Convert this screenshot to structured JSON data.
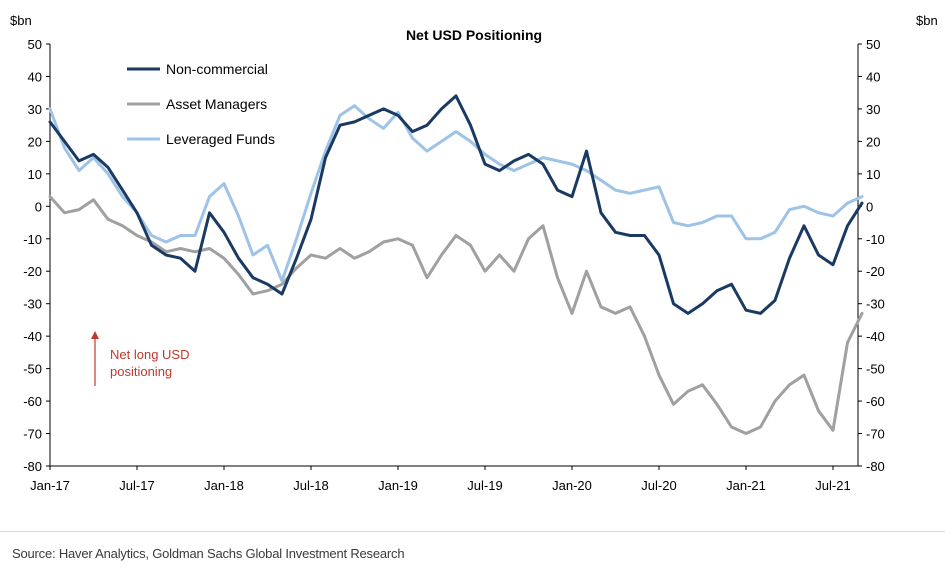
{
  "chart_data": {
    "type": "line",
    "title": "Net USD Positioning",
    "ylabel_left": "$bn",
    "ylabel_right": "$bn",
    "ylim": [
      -80,
      50
    ],
    "yticks": [
      50,
      40,
      30,
      20,
      10,
      0,
      -10,
      -20,
      -30,
      -40,
      -50,
      -60,
      -70,
      -80
    ],
    "xlim": [
      "2017-01",
      "2021-09"
    ],
    "xticks": [
      "Jan-17",
      "Jul-17",
      "Jan-18",
      "Jul-18",
      "Jan-19",
      "Jul-19",
      "Jan-20",
      "Jul-20",
      "Jan-21",
      "Jul-21"
    ],
    "grid": false,
    "legend_position": "top-left",
    "annotation": "Net long USD\npositioning",
    "series": [
      {
        "name": "Non-commercial",
        "color": "#1b3a63",
        "points": [
          [
            "2017-01",
            26
          ],
          [
            "2017-02",
            20
          ],
          [
            "2017-03",
            14
          ],
          [
            "2017-04",
            16
          ],
          [
            "2017-05",
            12
          ],
          [
            "2017-06",
            5
          ],
          [
            "2017-07",
            -2
          ],
          [
            "2017-08",
            -12
          ],
          [
            "2017-09",
            -15
          ],
          [
            "2017-10",
            -16
          ],
          [
            "2017-11",
            -20
          ],
          [
            "2017-12",
            -2
          ],
          [
            "2018-01",
            -8
          ],
          [
            "2018-02",
            -16
          ],
          [
            "2018-03",
            -22
          ],
          [
            "2018-04",
            -24
          ],
          [
            "2018-05",
            -27
          ],
          [
            "2018-06",
            -16
          ],
          [
            "2018-07",
            -4
          ],
          [
            "2018-08",
            15
          ],
          [
            "2018-09",
            25
          ],
          [
            "2018-10",
            26
          ],
          [
            "2018-11",
            28
          ],
          [
            "2018-12",
            30
          ],
          [
            "2019-01",
            28
          ],
          [
            "2019-02",
            23
          ],
          [
            "2019-03",
            25
          ],
          [
            "2019-04",
            30
          ],
          [
            "2019-05",
            34
          ],
          [
            "2019-06",
            25
          ],
          [
            "2019-07",
            13
          ],
          [
            "2019-08",
            11
          ],
          [
            "2019-09",
            14
          ],
          [
            "2019-10",
            16
          ],
          [
            "2019-11",
            13
          ],
          [
            "2019-12",
            5
          ],
          [
            "2020-01",
            3
          ],
          [
            "2020-02",
            17
          ],
          [
            "2020-03",
            -2
          ],
          [
            "2020-04",
            -8
          ],
          [
            "2020-05",
            -9
          ],
          [
            "2020-06",
            -9
          ],
          [
            "2020-07",
            -15
          ],
          [
            "2020-08",
            -30
          ],
          [
            "2020-09",
            -33
          ],
          [
            "2020-10",
            -30
          ],
          [
            "2020-11",
            -26
          ],
          [
            "2020-12",
            -24
          ],
          [
            "2021-01",
            -32
          ],
          [
            "2021-02",
            -33
          ],
          [
            "2021-03",
            -29
          ],
          [
            "2021-04",
            -16
          ],
          [
            "2021-05",
            -6
          ],
          [
            "2021-06",
            -15
          ],
          [
            "2021-07",
            -18
          ],
          [
            "2021-08",
            -6
          ],
          [
            "2021-09",
            1
          ]
        ]
      },
      {
        "name": "Asset Managers",
        "color": "#a0a0a0",
        "points": [
          [
            "2017-01",
            3
          ],
          [
            "2017-02",
            -2
          ],
          [
            "2017-03",
            -1
          ],
          [
            "2017-04",
            2
          ],
          [
            "2017-05",
            -4
          ],
          [
            "2017-06",
            -6
          ],
          [
            "2017-07",
            -9
          ],
          [
            "2017-08",
            -11
          ],
          [
            "2017-09",
            -14
          ],
          [
            "2017-10",
            -13
          ],
          [
            "2017-11",
            -14
          ],
          [
            "2017-12",
            -13
          ],
          [
            "2018-01",
            -16
          ],
          [
            "2018-02",
            -21
          ],
          [
            "2018-03",
            -27
          ],
          [
            "2018-04",
            -26
          ],
          [
            "2018-05",
            -24
          ],
          [
            "2018-06",
            -19
          ],
          [
            "2018-07",
            -15
          ],
          [
            "2018-08",
            -16
          ],
          [
            "2018-09",
            -13
          ],
          [
            "2018-10",
            -16
          ],
          [
            "2018-11",
            -14
          ],
          [
            "2018-12",
            -11
          ],
          [
            "2019-01",
            -10
          ],
          [
            "2019-02",
            -12
          ],
          [
            "2019-03",
            -22
          ],
          [
            "2019-04",
            -15
          ],
          [
            "2019-05",
            -9
          ],
          [
            "2019-06",
            -12
          ],
          [
            "2019-07",
            -20
          ],
          [
            "2019-08",
            -15
          ],
          [
            "2019-09",
            -20
          ],
          [
            "2019-10",
            -10
          ],
          [
            "2019-11",
            -6
          ],
          [
            "2019-12",
            -22
          ],
          [
            "2020-01",
            -33
          ],
          [
            "2020-02",
            -20
          ],
          [
            "2020-03",
            -31
          ],
          [
            "2020-04",
            -33
          ],
          [
            "2020-05",
            -31
          ],
          [
            "2020-06",
            -40
          ],
          [
            "2020-07",
            -52
          ],
          [
            "2020-08",
            -61
          ],
          [
            "2020-09",
            -57
          ],
          [
            "2020-10",
            -55
          ],
          [
            "2020-11",
            -61
          ],
          [
            "2020-12",
            -68
          ],
          [
            "2021-01",
            -70
          ],
          [
            "2021-02",
            -68
          ],
          [
            "2021-03",
            -60
          ],
          [
            "2021-04",
            -55
          ],
          [
            "2021-05",
            -52
          ],
          [
            "2021-06",
            -63
          ],
          [
            "2021-07",
            -69
          ],
          [
            "2021-08",
            -42
          ],
          [
            "2021-09",
            -33
          ]
        ]
      },
      {
        "name": "Leveraged Funds",
        "color": "#9dc3e6",
        "points": [
          [
            "2017-01",
            30
          ],
          [
            "2017-02",
            18
          ],
          [
            "2017-03",
            11
          ],
          [
            "2017-04",
            15
          ],
          [
            "2017-05",
            10
          ],
          [
            "2017-06",
            3
          ],
          [
            "2017-07",
            -2
          ],
          [
            "2017-08",
            -9
          ],
          [
            "2017-09",
            -11
          ],
          [
            "2017-10",
            -9
          ],
          [
            "2017-11",
            -9
          ],
          [
            "2017-12",
            3
          ],
          [
            "2018-01",
            7
          ],
          [
            "2018-02",
            -3
          ],
          [
            "2018-03",
            -15
          ],
          [
            "2018-04",
            -12
          ],
          [
            "2018-05",
            -23
          ],
          [
            "2018-06",
            -10
          ],
          [
            "2018-07",
            4
          ],
          [
            "2018-08",
            17
          ],
          [
            "2018-09",
            28
          ],
          [
            "2018-10",
            31
          ],
          [
            "2018-11",
            27
          ],
          [
            "2018-12",
            24
          ],
          [
            "2019-01",
            29
          ],
          [
            "2019-02",
            21
          ],
          [
            "2019-03",
            17
          ],
          [
            "2019-04",
            20
          ],
          [
            "2019-05",
            23
          ],
          [
            "2019-06",
            20
          ],
          [
            "2019-07",
            16
          ],
          [
            "2019-08",
            13
          ],
          [
            "2019-09",
            11
          ],
          [
            "2019-10",
            13
          ],
          [
            "2019-11",
            15
          ],
          [
            "2019-12",
            14
          ],
          [
            "2020-01",
            13
          ],
          [
            "2020-02",
            11
          ],
          [
            "2020-03",
            8
          ],
          [
            "2020-04",
            5
          ],
          [
            "2020-05",
            4
          ],
          [
            "2020-06",
            5
          ],
          [
            "2020-07",
            6
          ],
          [
            "2020-08",
            -5
          ],
          [
            "2020-09",
            -6
          ],
          [
            "2020-10",
            -5
          ],
          [
            "2020-11",
            -3
          ],
          [
            "2020-12",
            -3
          ],
          [
            "2021-01",
            -10
          ],
          [
            "2021-02",
            -10
          ],
          [
            "2021-03",
            -8
          ],
          [
            "2021-04",
            -1
          ],
          [
            "2021-05",
            0
          ],
          [
            "2021-06",
            -2
          ],
          [
            "2021-07",
            -3
          ],
          [
            "2021-08",
            1
          ],
          [
            "2021-09",
            3
          ]
        ]
      }
    ]
  },
  "footer": {
    "source": "Source: Haver Analytics, Goldman Sachs Global Investment Research"
  },
  "colors": {
    "annotation": "#c0392b",
    "axis": "#000000"
  }
}
